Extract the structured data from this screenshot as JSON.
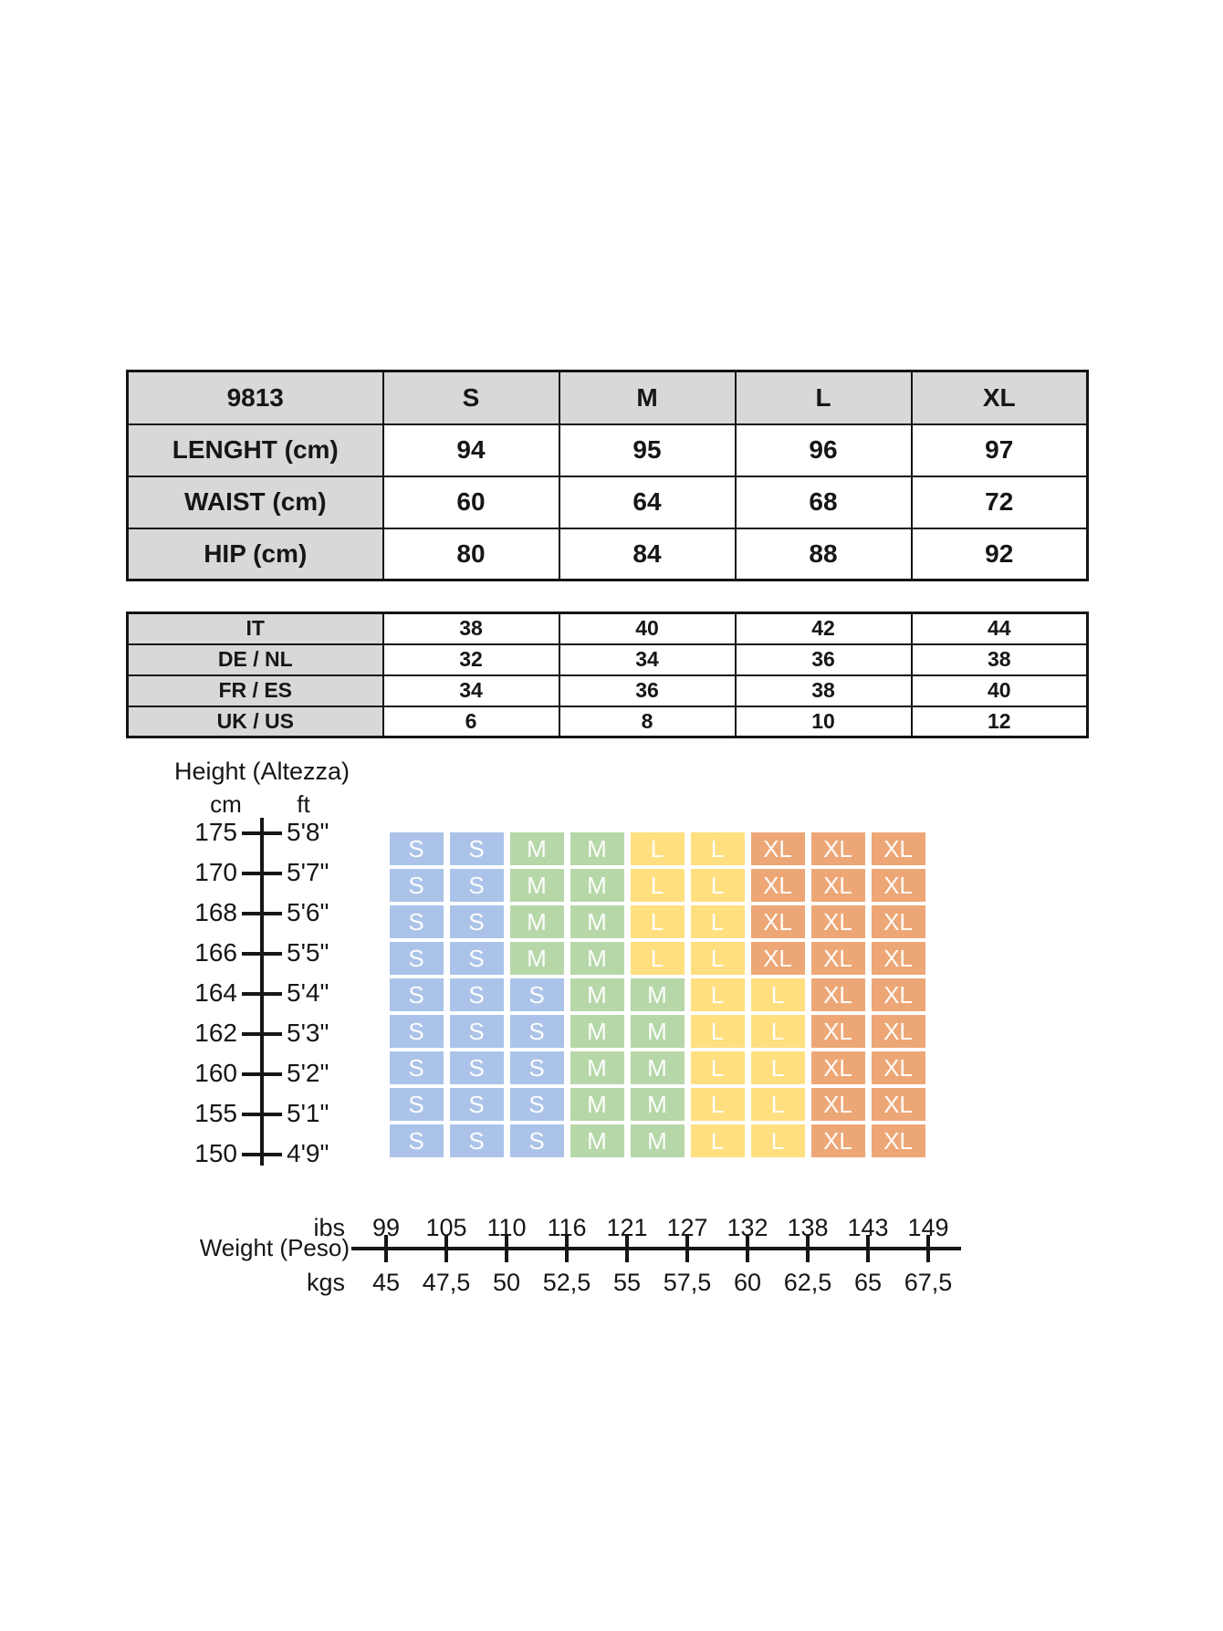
{
  "size_table": {
    "header": [
      "9813",
      "S",
      "M",
      "L",
      "XL"
    ],
    "rows": [
      {
        "label": "LENGHT (cm)",
        "values": [
          "94",
          "95",
          "96",
          "97"
        ]
      },
      {
        "label": "WAIST (cm)",
        "values": [
          "60",
          "64",
          "68",
          "72"
        ]
      },
      {
        "label": "HIP (cm)",
        "values": [
          "80",
          "84",
          "88",
          "92"
        ]
      }
    ]
  },
  "conversion_table": {
    "rows": [
      {
        "label": "IT",
        "values": [
          "38",
          "40",
          "42",
          "44"
        ]
      },
      {
        "label": "DE / NL",
        "values": [
          "32",
          "34",
          "36",
          "38"
        ]
      },
      {
        "label": "FR / ES",
        "values": [
          "34",
          "36",
          "38",
          "40"
        ]
      },
      {
        "label": "UK / US",
        "values": [
          "6",
          "8",
          "10",
          "12"
        ]
      }
    ]
  },
  "chart_data": {
    "type": "heatmap",
    "title": "Height (Altezza)",
    "height_axis": {
      "unit_left": "cm",
      "unit_right": "ft",
      "ticks": [
        {
          "cm": "175",
          "ft": "5'8\""
        },
        {
          "cm": "170",
          "ft": "5'7\""
        },
        {
          "cm": "168",
          "ft": "5'6\""
        },
        {
          "cm": "166",
          "ft": "5'5\""
        },
        {
          "cm": "164",
          "ft": "5'4\""
        },
        {
          "cm": "162",
          "ft": "5'3\""
        },
        {
          "cm": "160",
          "ft": "5'2\""
        },
        {
          "cm": "155",
          "ft": "5'1\""
        },
        {
          "cm": "150",
          "ft": "4'9\""
        }
      ]
    },
    "weight_axis": {
      "label": "Weight (Peso)",
      "unit_top": "ibs",
      "unit_bottom": "kgs",
      "ibs": [
        "99",
        "105",
        "110",
        "116",
        "121",
        "127",
        "132",
        "138",
        "143",
        "149"
      ],
      "kgs": [
        "45",
        "47,5",
        "50",
        "52,5",
        "55",
        "57,5",
        "60",
        "62,5",
        "65",
        "67,5"
      ]
    },
    "grid_rows": [
      [
        "S",
        "S",
        "M",
        "M",
        "L",
        "L",
        "XL",
        "XL",
        "XL"
      ],
      [
        "S",
        "S",
        "M",
        "M",
        "L",
        "L",
        "XL",
        "XL",
        "XL"
      ],
      [
        "S",
        "S",
        "M",
        "M",
        "L",
        "L",
        "XL",
        "XL",
        "XL"
      ],
      [
        "S",
        "S",
        "M",
        "M",
        "L",
        "L",
        "XL",
        "XL",
        "XL"
      ],
      [
        "S",
        "S",
        "S",
        "M",
        "M",
        "L",
        "L",
        "XL",
        "XL"
      ],
      [
        "S",
        "S",
        "S",
        "M",
        "M",
        "L",
        "L",
        "XL",
        "XL"
      ],
      [
        "S",
        "S",
        "S",
        "M",
        "M",
        "L",
        "L",
        "XL",
        "XL"
      ],
      [
        "S",
        "S",
        "S",
        "M",
        "M",
        "L",
        "L",
        "XL",
        "XL"
      ],
      [
        "S",
        "S",
        "S",
        "M",
        "M",
        "L",
        "L",
        "XL",
        "XL"
      ]
    ],
    "colors": {
      "S": "#abc3e8",
      "M": "#b6d7a8",
      "L": "#ffdf7f",
      "XL": "#eda776",
      "header_gray": "#d8d8d8",
      "line": "#161616"
    },
    "legend_position": "none",
    "grid_on": true
  }
}
